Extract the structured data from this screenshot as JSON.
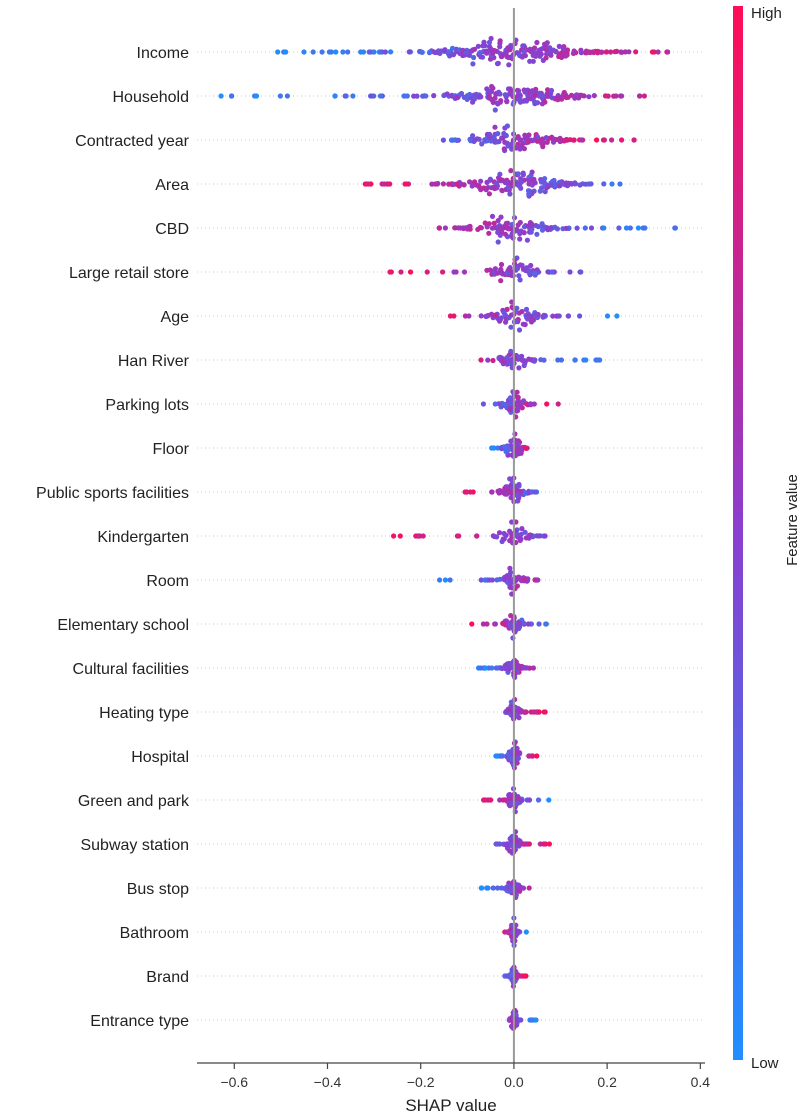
{
  "chart_data": {
    "type": "scatter",
    "subtype": "shap-beeswarm",
    "title": "",
    "xlabel": "SHAP value",
    "ylabel": "",
    "xlim": [
      -0.68,
      0.41
    ],
    "xticks": [
      -0.6,
      -0.4,
      -0.2,
      0.0,
      0.2,
      0.4
    ],
    "xtick_labels": [
      "−0.6",
      "−0.4",
      "−0.2",
      "0.0",
      "0.2",
      "0.4"
    ],
    "grid": false,
    "zero_line": true,
    "colorbar": {
      "title": "Feature value",
      "high_label": "High",
      "low_label": "Low",
      "low_color": "#1f8fff",
      "mid_color": "#8a3fcf",
      "high_color": "#ff0d57"
    },
    "features": [
      {
        "name": "Income",
        "shap_min": -0.52,
        "shap_max": 0.33,
        "low_side": "negative",
        "spread": 0.25
      },
      {
        "name": "Household",
        "shap_min": -0.63,
        "shap_max": 0.28,
        "low_side": "negative",
        "spread": 0.2
      },
      {
        "name": "Contracted year",
        "shap_min": -0.17,
        "shap_max": 0.27,
        "low_side": "negative",
        "spread": 0.14
      },
      {
        "name": "Area",
        "shap_min": -0.34,
        "shap_max": 0.23,
        "low_side": "positive",
        "spread": 0.18
      },
      {
        "name": "CBD",
        "shap_min": -0.16,
        "shap_max": 0.37,
        "low_side": "positive",
        "spread": 0.13
      },
      {
        "name": "Large retail store",
        "shap_min": -0.28,
        "shap_max": 0.2,
        "low_side": "positive",
        "spread": 0.08
      },
      {
        "name": "Age",
        "shap_min": -0.14,
        "shap_max": 0.28,
        "low_side": "positive",
        "spread": 0.09
      },
      {
        "name": "Han River",
        "shap_min": -0.09,
        "shap_max": 0.2,
        "low_side": "positive",
        "spread": 0.06
      },
      {
        "name": "Parking lots",
        "shap_min": -0.07,
        "shap_max": 0.11,
        "low_side": "negative",
        "spread": 0.04
      },
      {
        "name": "Floor",
        "shap_min": -0.06,
        "shap_max": 0.06,
        "low_side": "negative",
        "spread": 0.03
      },
      {
        "name": "Public sports facilities",
        "shap_min": -0.12,
        "shap_max": 0.08,
        "low_side": "positive",
        "spread": 0.04
      },
      {
        "name": "Kindergarten",
        "shap_min": -0.28,
        "shap_max": 0.07,
        "low_side": "positive",
        "spread": 0.05
      },
      {
        "name": "Room",
        "shap_min": -0.16,
        "shap_max": 0.06,
        "low_side": "negative",
        "spread": 0.04
      },
      {
        "name": "Elementary school",
        "shap_min": -0.1,
        "shap_max": 0.07,
        "low_side": "positive",
        "spread": 0.03
      },
      {
        "name": "Cultural facilities",
        "shap_min": -0.08,
        "shap_max": 0.05,
        "low_side": "negative",
        "spread": 0.03
      },
      {
        "name": "Heating type",
        "shap_min": -0.02,
        "shap_max": 0.07,
        "low_side": "negative",
        "spread": 0.02
      },
      {
        "name": "Hospital",
        "shap_min": -0.04,
        "shap_max": 0.05,
        "low_side": "negative",
        "spread": 0.02
      },
      {
        "name": "Green and park",
        "shap_min": -0.07,
        "shap_max": 0.08,
        "low_side": "positive",
        "spread": 0.02
      },
      {
        "name": "Subway station",
        "shap_min": -0.04,
        "shap_max": 0.08,
        "low_side": "negative",
        "spread": 0.02
      },
      {
        "name": "Bus stop",
        "shap_min": -0.07,
        "shap_max": 0.04,
        "low_side": "negative",
        "spread": 0.02
      },
      {
        "name": "Bathroom",
        "shap_min": -0.02,
        "shap_max": 0.03,
        "low_side": "positive",
        "spread": 0.01
      },
      {
        "name": "Brand",
        "shap_min": -0.02,
        "shap_max": 0.03,
        "low_side": "negative",
        "spread": 0.01
      },
      {
        "name": "Entrance type",
        "shap_min": -0.01,
        "shap_max": 0.05,
        "low_side": "positive",
        "spread": 0.01
      }
    ]
  }
}
